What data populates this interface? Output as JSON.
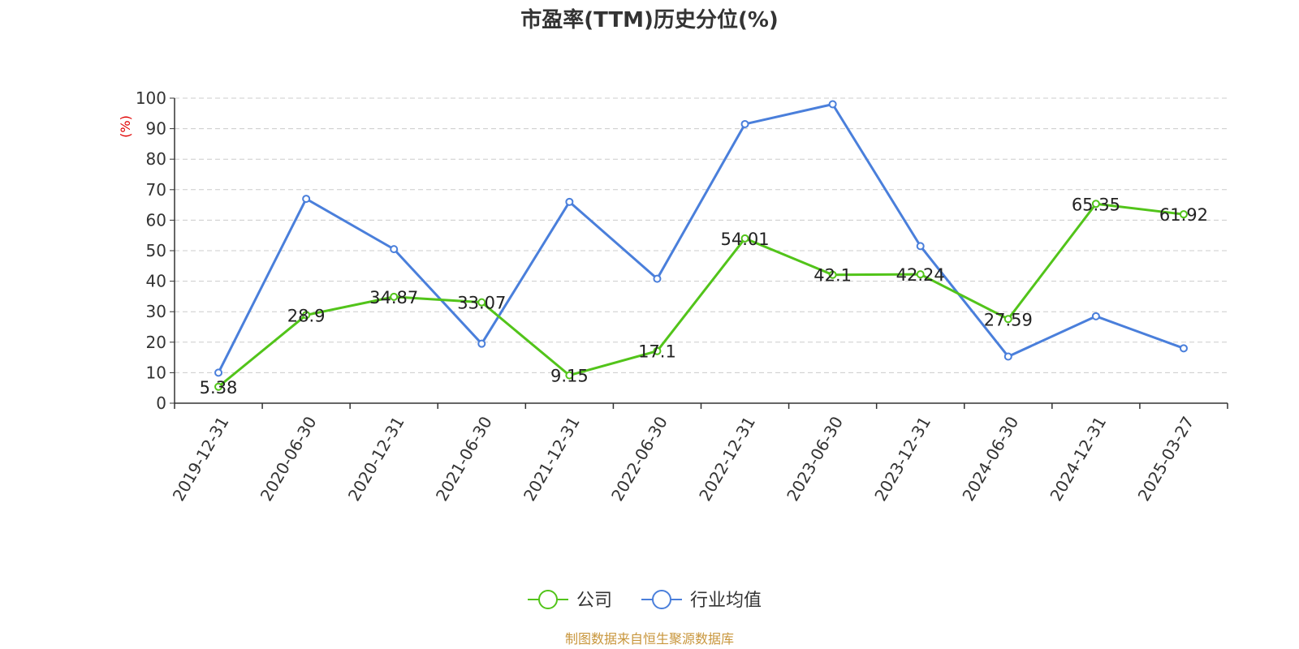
{
  "chart_data": {
    "type": "line",
    "title": "市盈率(TTM)历史分位(%)",
    "ylabel": "(%)",
    "ylim": [
      0,
      100
    ],
    "yticks": [
      0,
      10,
      20,
      30,
      40,
      50,
      60,
      70,
      80,
      90,
      100
    ],
    "grid": true,
    "legend_position": "bottom-center",
    "categories": [
      "2019-12-31",
      "2020-06-30",
      "2020-12-31",
      "2021-06-30",
      "2021-12-31",
      "2022-06-30",
      "2022-12-31",
      "2023-06-30",
      "2023-12-31",
      "2024-06-30",
      "2024-12-31",
      "2025-03-27"
    ],
    "series": [
      {
        "name": "公司",
        "color": "#52c41a",
        "show_labels": true,
        "values": [
          5.38,
          28.9,
          34.87,
          33.07,
          9.15,
          17.1,
          54.01,
          42.1,
          42.24,
          27.59,
          65.35,
          61.92
        ]
      },
      {
        "name": "行业均值",
        "color": "#4a7fdb",
        "show_labels": false,
        "values": [
          10.0,
          67.0,
          50.5,
          19.5,
          66.0,
          40.8,
          91.5,
          98.0,
          51.5,
          15.3,
          28.5,
          18.0
        ]
      }
    ]
  },
  "source_text": "制图数据来自恒生聚源数据库",
  "colors": {
    "ylabel": "#e00000",
    "source": "#c8963c",
    "grid": "#cccccc",
    "axis": "#333333"
  }
}
